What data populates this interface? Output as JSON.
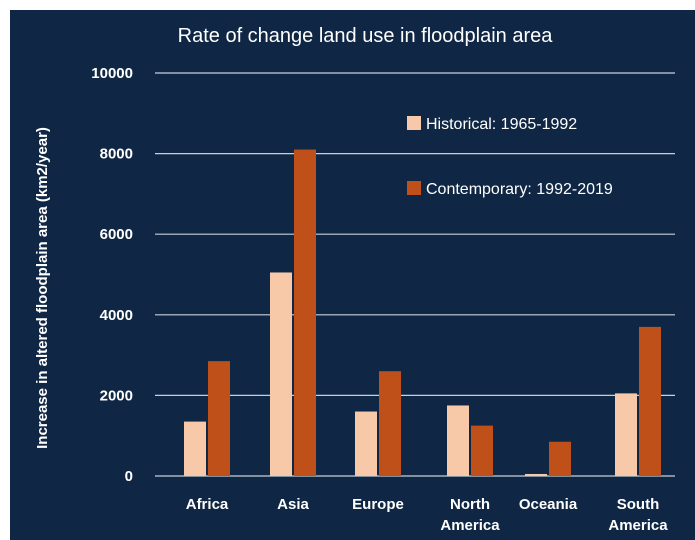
{
  "chart_data": {
    "type": "bar",
    "title": "Rate of change land use in floodplain area",
    "ylabel": "Increase in altered  floodplain area (km2/year)",
    "xlabel": "",
    "categories": [
      [
        "Africa"
      ],
      [
        "Asia"
      ],
      [
        "Europe"
      ],
      [
        "North",
        "America"
      ],
      [
        "Oceania"
      ],
      [
        "South",
        "America"
      ]
    ],
    "series": [
      {
        "name": "Historical: 1965-1992",
        "color": "#f8c9a8",
        "values": [
          1350,
          5050,
          1600,
          1750,
          50,
          2050
        ]
      },
      {
        "name": "Contemporary: 1992-2019",
        "color": "#c0501a",
        "values": [
          2850,
          8100,
          2600,
          1250,
          850,
          3700
        ]
      }
    ],
    "ylim": [
      0,
      10000
    ],
    "yticks": [
      "0",
      "2000",
      "4000",
      "6000",
      "8000",
      "10000"
    ],
    "grid": true,
    "legend_position": "top-right",
    "background_color": "#0f2744",
    "grid_color": "#c8cfd8"
  }
}
